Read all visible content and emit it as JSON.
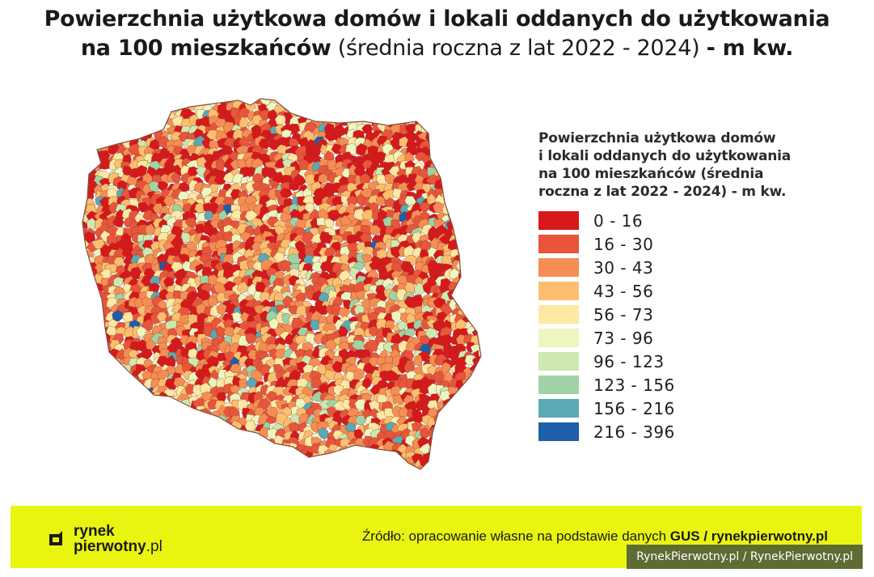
{
  "title": {
    "bold_part1": "Powierzchnia użytkowa domów i lokali oddanych do użytkowania",
    "bold_part2": "na 100 mieszkańców",
    "normal_part": "(średnia roczna z lat 2022 - 2024)",
    "bold_part3": "- m kw."
  },
  "legend": {
    "title": "Powierzchnia użytkowa domów\ni lokali oddanych do użytkowania\nna 100 mieszkańców (średnia\nroczna z lat 2022 - 2024) - m kw.",
    "items": [
      {
        "label": "0 - 16",
        "color": "#d7191c"
      },
      {
        "label": "16 - 30",
        "color": "#e8553b"
      },
      {
        "label": "30 - 43",
        "color": "#f68d53"
      },
      {
        "label": "43 - 56",
        "color": "#fdbf6f"
      },
      {
        "label": "56 - 73",
        "color": "#fee8a3"
      },
      {
        "label": "73 - 96",
        "color": "#eef6c0"
      },
      {
        "label": "96 - 123",
        "color": "#cde9b0"
      },
      {
        "label": "123 - 156",
        "color": "#9fd3a5"
      },
      {
        "label": "156 - 216",
        "color": "#5aa9b4"
      },
      {
        "label": "216 - 396",
        "color": "#1f5ea8"
      }
    ]
  },
  "map": {
    "region": "Poland",
    "division": "municipalities (gminy)",
    "dominant_classes": [
      "0 - 16",
      "16 - 30",
      "30 - 43",
      "43 - 56"
    ]
  },
  "footer": {
    "logo_line1": "rynek",
    "logo_line2_bold": "pierwotny",
    "logo_line2_suffix": ".pl",
    "source_prefix": "Źródło: opracowanie własne na podstawie danych ",
    "source_bold": "GUS / rynekpierwotny.pl",
    "background_color": "#e9f511"
  },
  "watermark": "RynekPierwotny.pl / RynekPierwotny.pl"
}
